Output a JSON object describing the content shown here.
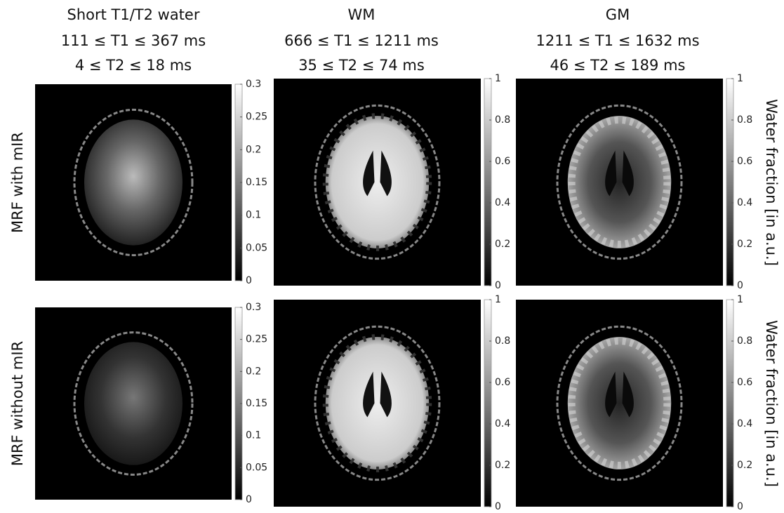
{
  "columns": [
    {
      "title": "Short T1/T2 water",
      "t1_range": "111 ≤ T1 ≤ 367 ms",
      "t2_range": "4 ≤ T2 ≤ 18 ms",
      "colorbar_ticks": [
        "0.3",
        "0.25",
        "0.2",
        "0.15",
        "0.1",
        "0.05",
        "0"
      ]
    },
    {
      "title": "WM",
      "t1_range": "666 ≤ T1 ≤ 1211 ms",
      "t2_range": "35 ≤ T2 ≤ 74 ms",
      "colorbar_ticks": [
        "1",
        "0.8",
        "0.6",
        "0.4",
        "0.2",
        "0"
      ]
    },
    {
      "title": "GM",
      "t1_range": "1211 ≤ T1 ≤ 1632 ms",
      "t2_range": "46 ≤ T2 ≤ 189 ms",
      "colorbar_ticks": [
        "1",
        "0.8",
        "0.6",
        "0.4",
        "0.2",
        "0"
      ]
    }
  ],
  "rows": [
    {
      "label": "MRF with mIR",
      "side_label": "Water fraction [in a.u.]"
    },
    {
      "label": "MRF without mIR",
      "side_label": "Water fraction [in a.u.]"
    }
  ]
}
